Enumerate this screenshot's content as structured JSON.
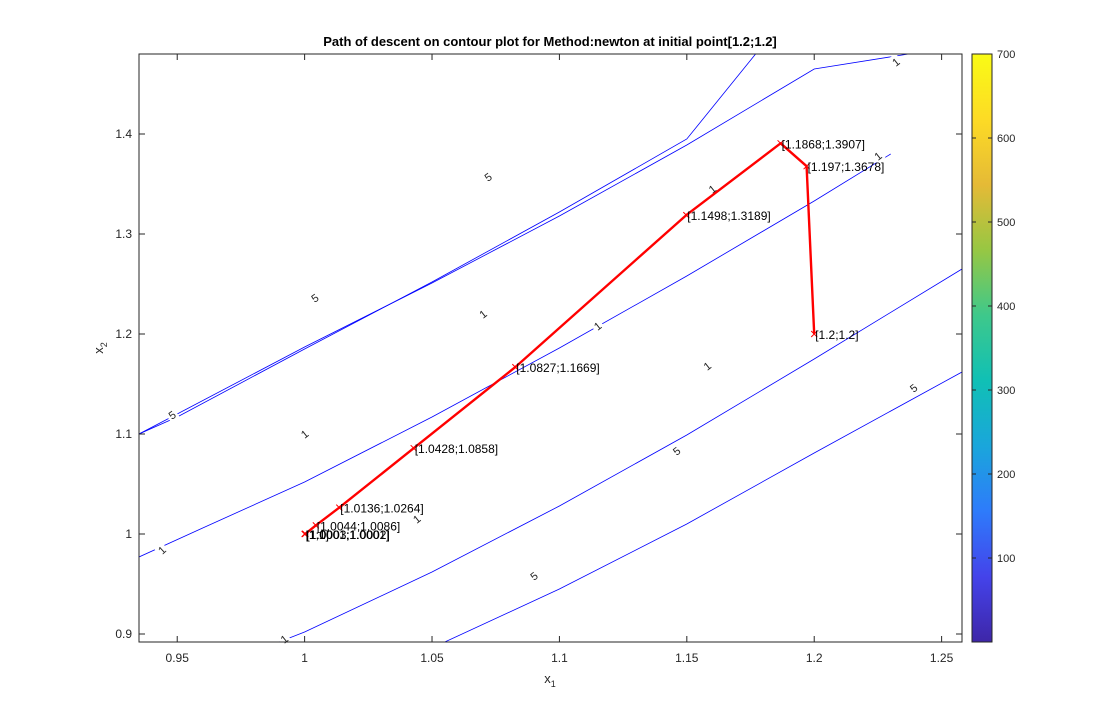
{
  "chart_data": {
    "type": "line",
    "title": "Path of descent on contour plot for Method:newton  at initial point[1.2;1.2]",
    "xlabel": {
      "base": "x",
      "sub": "1"
    },
    "ylabel": {
      "base": "x",
      "sub": "2"
    },
    "xlim": [
      0.935,
      1.258
    ],
    "ylim": [
      0.892,
      1.48
    ],
    "xticks": [
      0.95,
      1,
      1.05,
      1.1,
      1.15,
      1.2,
      1.25
    ],
    "xtick_labels": [
      "0.95",
      "1",
      "1.05",
      "1.1",
      "1.15",
      "1.2",
      "1.25"
    ],
    "yticks": [
      0.9,
      1,
      1.1,
      1.2,
      1.3,
      1.4
    ],
    "ytick_labels": [
      "0.9",
      "1",
      "1.1",
      "1.2",
      "1.3",
      "1.4"
    ],
    "colorbar": {
      "range": [
        0,
        700
      ],
      "ticks": [
        100,
        200,
        300,
        400,
        500,
        600,
        700
      ],
      "tick_labels": [
        "100",
        "200",
        "300",
        "400",
        "500",
        "600",
        "700"
      ],
      "colormap": [
        "#3e26a8",
        "#4443ea",
        "#2e7bfb",
        "#1aa6db",
        "#10c0b5",
        "#3ec88b",
        "#97c743",
        "#e5ba36",
        "#fddb25",
        "#f9fb15"
      ]
    },
    "contours": {
      "color": "#0000ff",
      "levels": [
        {
          "level": 1,
          "lines": [
            {
              "x": [
                0.935,
                0.96,
                1.0,
                1.05,
                1.1,
                1.15,
                1.2,
                1.23
              ],
              "y": [
                0.977,
                1.006,
                1.052,
                1.117,
                1.186,
                1.258,
                1.333,
                1.38
              ],
              "labels": [
                {
                  "x": 0.944,
                  "y": 0.984,
                  "rot": -43
                },
                {
                  "x": 1.115,
                  "y": 1.208,
                  "rot": -38
                },
                {
                  "x": 1.225,
                  "y": 1.378,
                  "rot": -38
                }
              ]
            },
            {
              "x": [
                0.99,
                1.0,
                1.05,
                1.1,
                1.15,
                1.2,
                1.258
              ],
              "y": [
                0.892,
                0.902,
                0.962,
                1.028,
                1.099,
                1.175,
                1.265
              ],
              "labels": [
                {
                  "x": 0.992,
                  "y": 0.895,
                  "rot": -38
                },
                {
                  "x": 1.044,
                  "y": 1.015,
                  "rot": -38
                },
                {
                  "x": 1.158,
                  "y": 1.168,
                  "rot": -38
                }
              ]
            },
            {
              "x": [
                0.935,
                0.95,
                1.0,
                1.05,
                1.1,
                1.15,
                1.2,
                1.237
              ],
              "y": [
                1.1,
                1.12,
                1.187,
                1.251,
                1.318,
                1.389,
                1.465,
                1.48
              ],
              "labels": [
                {
                  "x": 1.0,
                  "y": 1.1,
                  "rot": -38
                },
                {
                  "x": 1.07,
                  "y": 1.22,
                  "rot": -38
                },
                {
                  "x": 1.16,
                  "y": 1.345,
                  "rot": -38
                },
                {
                  "x": 1.232,
                  "y": 1.472,
                  "rot": -38
                }
              ]
            }
          ]
        },
        {
          "level": 5,
          "lines": [
            {
              "x": [
                0.935,
                0.95,
                1.0,
                1.05,
                1.1,
                1.15,
                1.177
              ],
              "y": [
                1.1,
                1.117,
                1.185,
                1.252,
                1.322,
                1.395,
                1.48
              ],
              "labels": [
                {
                  "x": 0.948,
                  "y": 1.119,
                  "rot": -35
                },
                {
                  "x": 1.004,
                  "y": 1.236,
                  "rot": -35
                },
                {
                  "x": 1.072,
                  "y": 1.357,
                  "rot": -35
                }
              ]
            },
            {
              "x": [
                1.055,
                1.1,
                1.15,
                1.2,
                1.258
              ],
              "y": [
                0.892,
                0.945,
                1.01,
                1.081,
                1.162
              ],
              "labels": [
                {
                  "x": 1.09,
                  "y": 0.958,
                  "rot": -38
                },
                {
                  "x": 1.146,
                  "y": 1.083,
                  "rot": -38
                },
                {
                  "x": 1.239,
                  "y": 1.146,
                  "rot": -38
                }
              ]
            }
          ]
        }
      ]
    },
    "series": [
      {
        "color": "#ff0000",
        "x": [
          1.2,
          1.197,
          1.1868,
          1.1498,
          1.0827,
          1.0428,
          1.0136,
          1.0044,
          1.0003,
          1.0001,
          1.0
        ],
        "y": [
          1.2,
          1.3678,
          1.3907,
          1.3189,
          1.1669,
          1.0858,
          1.0264,
          1.0086,
          1.0002,
          1.0001,
          1.0
        ]
      }
    ],
    "point_labels": [
      {
        "text": "[1.2;1.2]",
        "x": 1.2,
        "y": 1.2
      },
      {
        "text": "[1.197;1.3678]",
        "x": 1.197,
        "y": 1.3678
      },
      {
        "text": "[1.1868;1.3907]",
        "x": 1.1868,
        "y": 1.3907
      },
      {
        "text": "[1.1498;1.3189]",
        "x": 1.1498,
        "y": 1.3189
      },
      {
        "text": "[1.0827;1.1669]",
        "x": 1.0827,
        "y": 1.1669
      },
      {
        "text": "[1.0428;1.0858]",
        "x": 1.0428,
        "y": 1.0858
      },
      {
        "text": "[1.0136;1.0264]",
        "x": 1.0136,
        "y": 1.0264
      },
      {
        "text": "[1.0044;1.0086]",
        "x": 1.0044,
        "y": 1.0086
      },
      {
        "text": "[1.0003;1.0002]",
        "x": 1.0003,
        "y": 1.0002
      },
      {
        "text": "[1.0001;1.0001]",
        "x": 1.0001,
        "y": 1.0001
      },
      {
        "text": "[1;1]",
        "x": 1.0,
        "y": 1.0
      }
    ]
  }
}
